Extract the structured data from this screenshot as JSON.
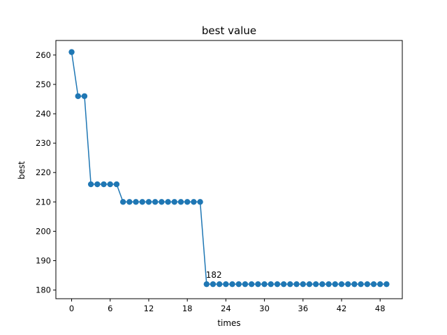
{
  "chart_data": {
    "type": "line",
    "title": "best value",
    "xlabel": "times",
    "ylabel": "best",
    "xlim": [
      -2.45,
      51.45
    ],
    "ylim": [
      177.05,
      264.95
    ],
    "xticks": [
      0,
      6,
      12,
      18,
      24,
      30,
      36,
      42,
      48
    ],
    "yticks": [
      180,
      190,
      200,
      210,
      220,
      230,
      240,
      250,
      260
    ],
    "grid": false,
    "markers": true,
    "color": "#1f77b4",
    "series": [
      {
        "values": [
          261,
          246,
          246,
          216,
          216,
          216,
          216,
          216,
          210,
          210,
          210,
          210,
          210,
          210,
          210,
          210,
          210,
          210,
          210,
          210,
          210,
          182,
          182,
          182,
          182,
          182,
          182,
          182,
          182,
          182,
          182,
          182,
          182,
          182,
          182,
          182,
          182,
          182,
          182,
          182,
          182,
          182,
          182,
          182,
          182,
          182,
          182,
          182,
          182,
          182
        ]
      }
    ],
    "annotations": [
      {
        "text": "182",
        "x": 21,
        "y": 182
      }
    ]
  }
}
